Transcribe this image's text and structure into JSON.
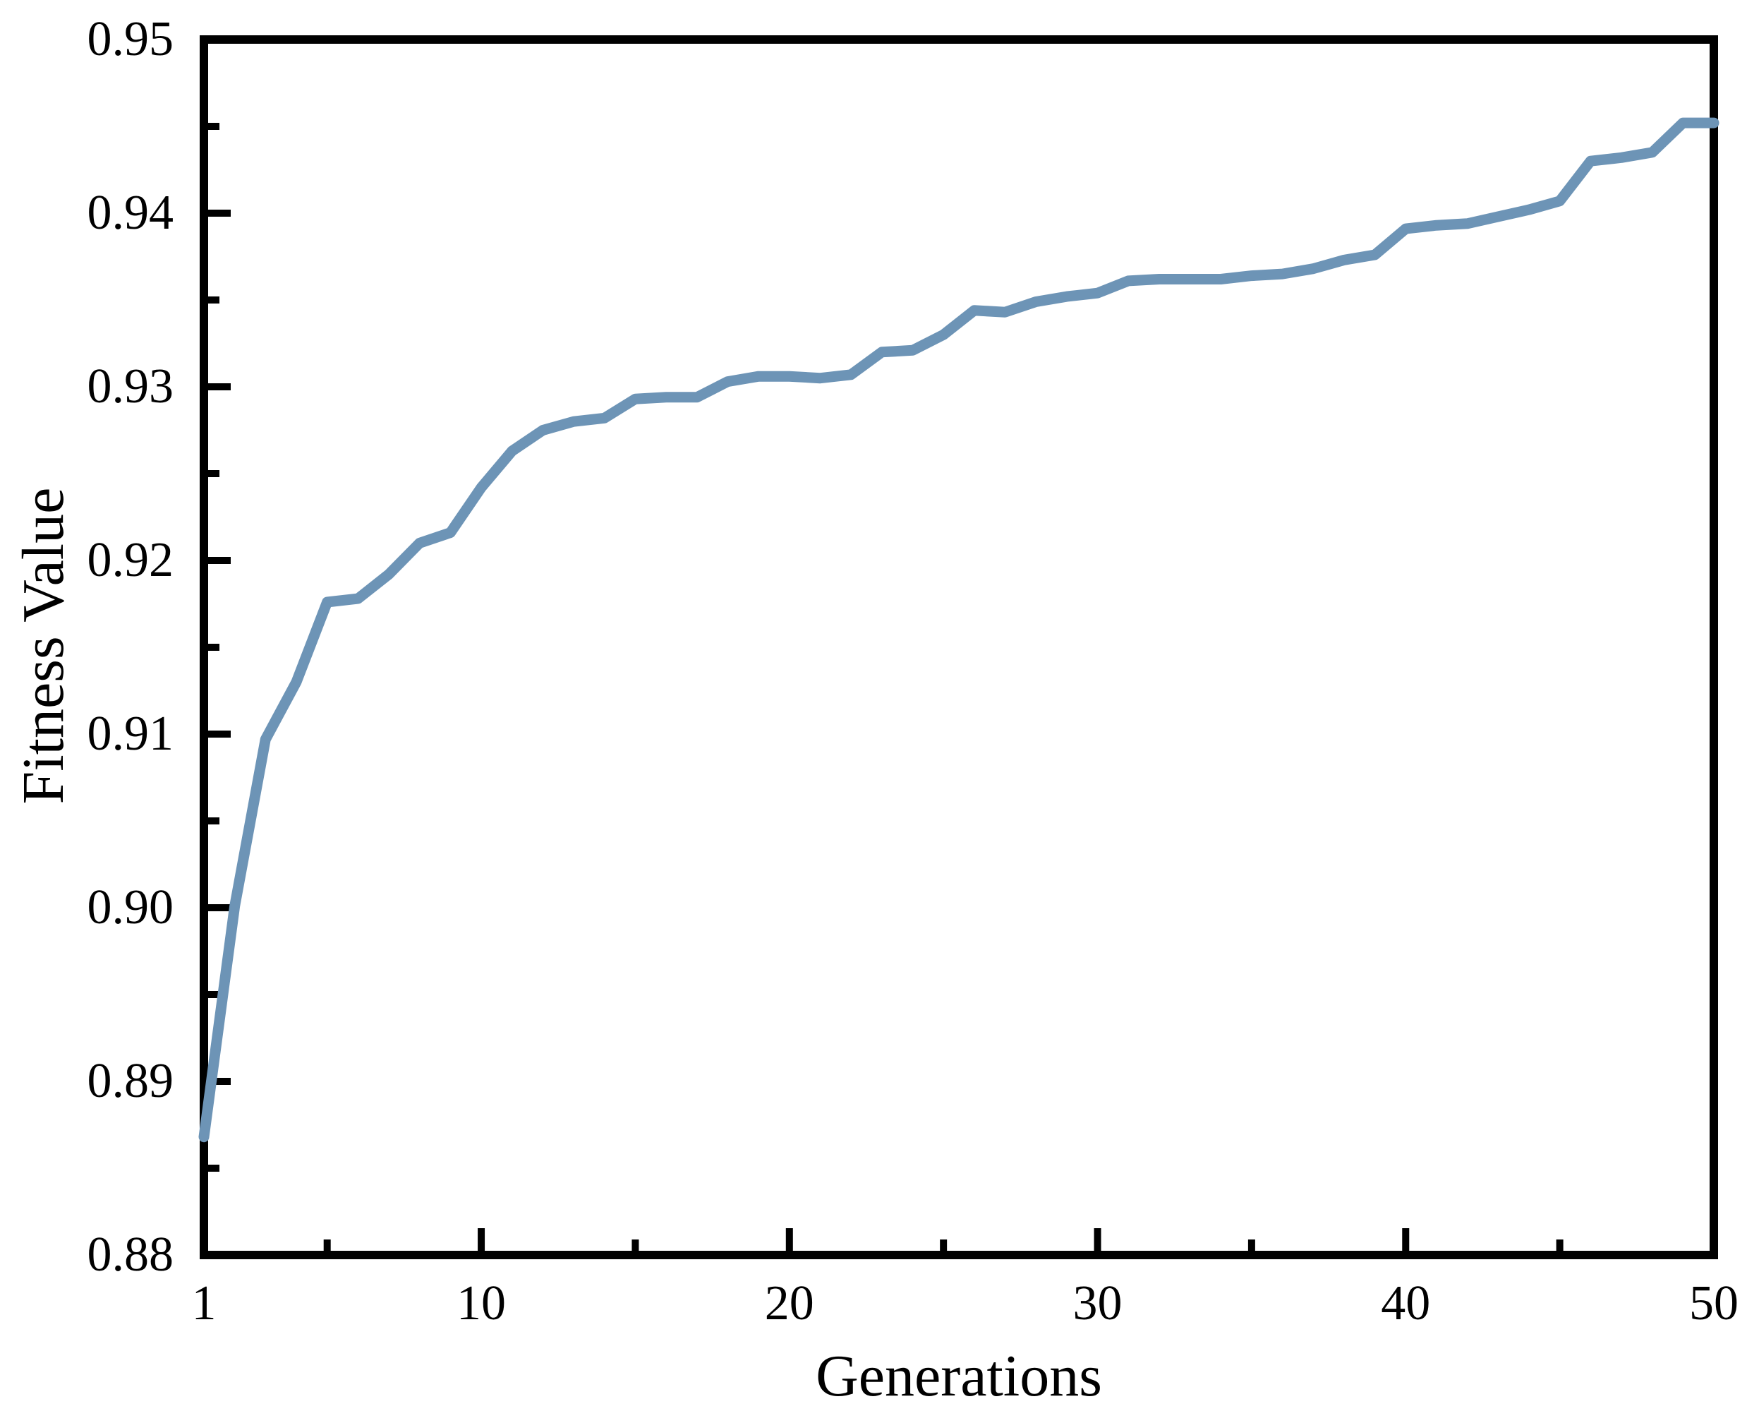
{
  "figure": {
    "background_color": "#ffffff",
    "frame_color": "#000000",
    "line_color": "#6D94B6",
    "text_color": "#000000"
  },
  "chart_data": {
    "type": "line",
    "title": "",
    "xlabel": "Generations",
    "ylabel": "Fitness Value",
    "xlim": [
      1,
      50
    ],
    "ylim": [
      0.88,
      0.95
    ],
    "grid": false,
    "legend": "none",
    "x_axis": {
      "major_ticks": [
        10,
        20,
        30,
        40,
        50
      ],
      "minor_ticks": [
        5,
        15,
        25,
        35,
        45
      ],
      "tick_labels": [
        {
          "at": 1,
          "text": "1"
        },
        {
          "at": 10,
          "text": "10"
        },
        {
          "at": 20,
          "text": "20"
        },
        {
          "at": 30,
          "text": "30"
        },
        {
          "at": 40,
          "text": "40"
        },
        {
          "at": 50,
          "text": "50"
        }
      ]
    },
    "y_axis": {
      "major_ticks": [
        0.89,
        0.9,
        0.91,
        0.92,
        0.93,
        0.94
      ],
      "minor_ticks": [
        0.885,
        0.895,
        0.905,
        0.915,
        0.925,
        0.935,
        0.945
      ],
      "tick_labels": [
        {
          "at": 0.95,
          "text": "0.95"
        },
        {
          "at": 0.94,
          "text": "0.94"
        },
        {
          "at": 0.93,
          "text": "0.93"
        },
        {
          "at": 0.92,
          "text": "0.92"
        },
        {
          "at": 0.91,
          "text": "0.91"
        },
        {
          "at": 0.9,
          "text": "0.90"
        },
        {
          "at": 0.89,
          "text": "0.89"
        },
        {
          "at": 0.88,
          "text": "0.88"
        }
      ]
    },
    "series": [
      {
        "name": "fitness",
        "x": [
          1,
          2,
          3,
          4,
          5,
          6,
          7,
          8,
          9,
          10,
          11,
          12,
          13,
          14,
          15,
          16,
          17,
          18,
          19,
          20,
          21,
          22,
          23,
          24,
          25,
          26,
          27,
          28,
          29,
          30,
          31,
          32,
          33,
          34,
          35,
          36,
          37,
          38,
          39,
          40,
          41,
          42,
          43,
          44,
          45,
          46,
          47,
          48,
          49,
          50
        ],
        "values": [
          0.8868,
          0.9001,
          0.9097,
          0.913,
          0.9176,
          0.9178,
          0.9192,
          0.921,
          0.9216,
          0.9242,
          0.9263,
          0.9275,
          0.928,
          0.9282,
          0.9293,
          0.9294,
          0.9294,
          0.9303,
          0.9306,
          0.9306,
          0.9305,
          0.9307,
          0.932,
          0.9321,
          0.933,
          0.9344,
          0.9343,
          0.9349,
          0.9352,
          0.9354,
          0.9361,
          0.9362,
          0.9362,
          0.9362,
          0.9364,
          0.9365,
          0.9368,
          0.9373,
          0.9376,
          0.9391,
          0.9393,
          0.9394,
          0.9398,
          0.9402,
          0.9407,
          0.943,
          0.9432,
          0.9435,
          0.9452,
          0.9452
        ]
      }
    ]
  }
}
